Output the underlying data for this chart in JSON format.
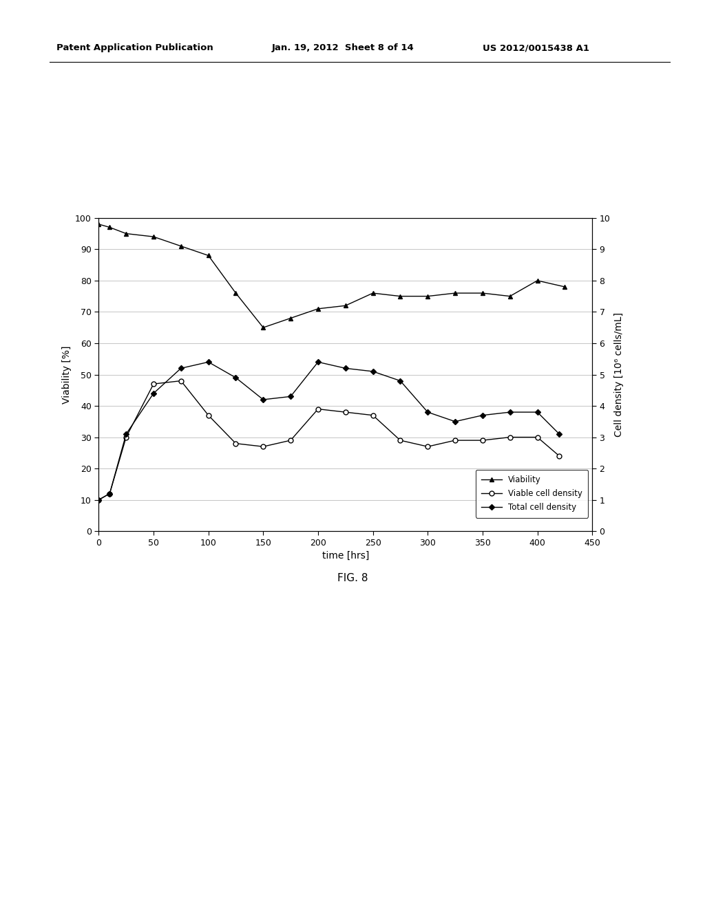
{
  "viability_x": [
    0,
    10,
    25,
    50,
    75,
    100,
    125,
    150,
    175,
    200,
    225,
    250,
    275,
    300,
    325,
    350,
    375,
    400,
    425
  ],
  "viability_y": [
    98,
    97,
    95,
    94,
    91,
    88,
    76,
    65,
    68,
    71,
    72,
    76,
    75,
    75,
    76,
    76,
    75,
    80,
    78
  ],
  "viable_x": [
    0,
    10,
    25,
    50,
    75,
    100,
    125,
    150,
    175,
    200,
    225,
    250,
    275,
    300,
    325,
    350,
    375,
    400,
    420
  ],
  "viable_y": [
    1.0,
    1.2,
    3.0,
    4.7,
    4.8,
    3.7,
    2.8,
    2.7,
    2.9,
    3.9,
    3.8,
    3.7,
    2.9,
    2.7,
    2.9,
    2.9,
    3.0,
    3.0,
    2.4
  ],
  "total_x": [
    0,
    10,
    25,
    50,
    75,
    100,
    125,
    150,
    175,
    200,
    225,
    250,
    275,
    300,
    325,
    350,
    375,
    400,
    420
  ],
  "total_y": [
    1.0,
    1.2,
    3.1,
    4.4,
    5.2,
    5.4,
    4.9,
    4.2,
    4.3,
    5.4,
    5.2,
    5.1,
    4.8,
    3.8,
    3.5,
    3.7,
    3.8,
    3.8,
    3.1
  ],
  "xlabel": "time [hrs]",
  "ylabel_left": "Viability [%]",
  "ylabel_right": "Cell density [10⁶ cells/mL]",
  "xlim": [
    0,
    450
  ],
  "ylim_left": [
    0,
    100
  ],
  "ylim_right": [
    0,
    10
  ],
  "xticks": [
    0,
    50,
    100,
    150,
    200,
    250,
    300,
    350,
    400,
    450
  ],
  "yticks_left": [
    0,
    10,
    20,
    30,
    40,
    50,
    60,
    70,
    80,
    90,
    100
  ],
  "yticks_right": [
    0,
    1,
    2,
    3,
    4,
    5,
    6,
    7,
    8,
    9,
    10
  ],
  "legend_viability": "Viability",
  "legend_viable": "Viable cell density",
  "legend_total": "Total cell density",
  "header_left": "Patent Application Publication",
  "header_mid": "Jan. 19, 2012  Sheet 8 of 14",
  "header_right": "US 2012/0015438 A1",
  "fig_label": "FIG. 8",
  "bg_color": "#ffffff",
  "line_color": "#000000",
  "grid_color": "#bbbbbb"
}
